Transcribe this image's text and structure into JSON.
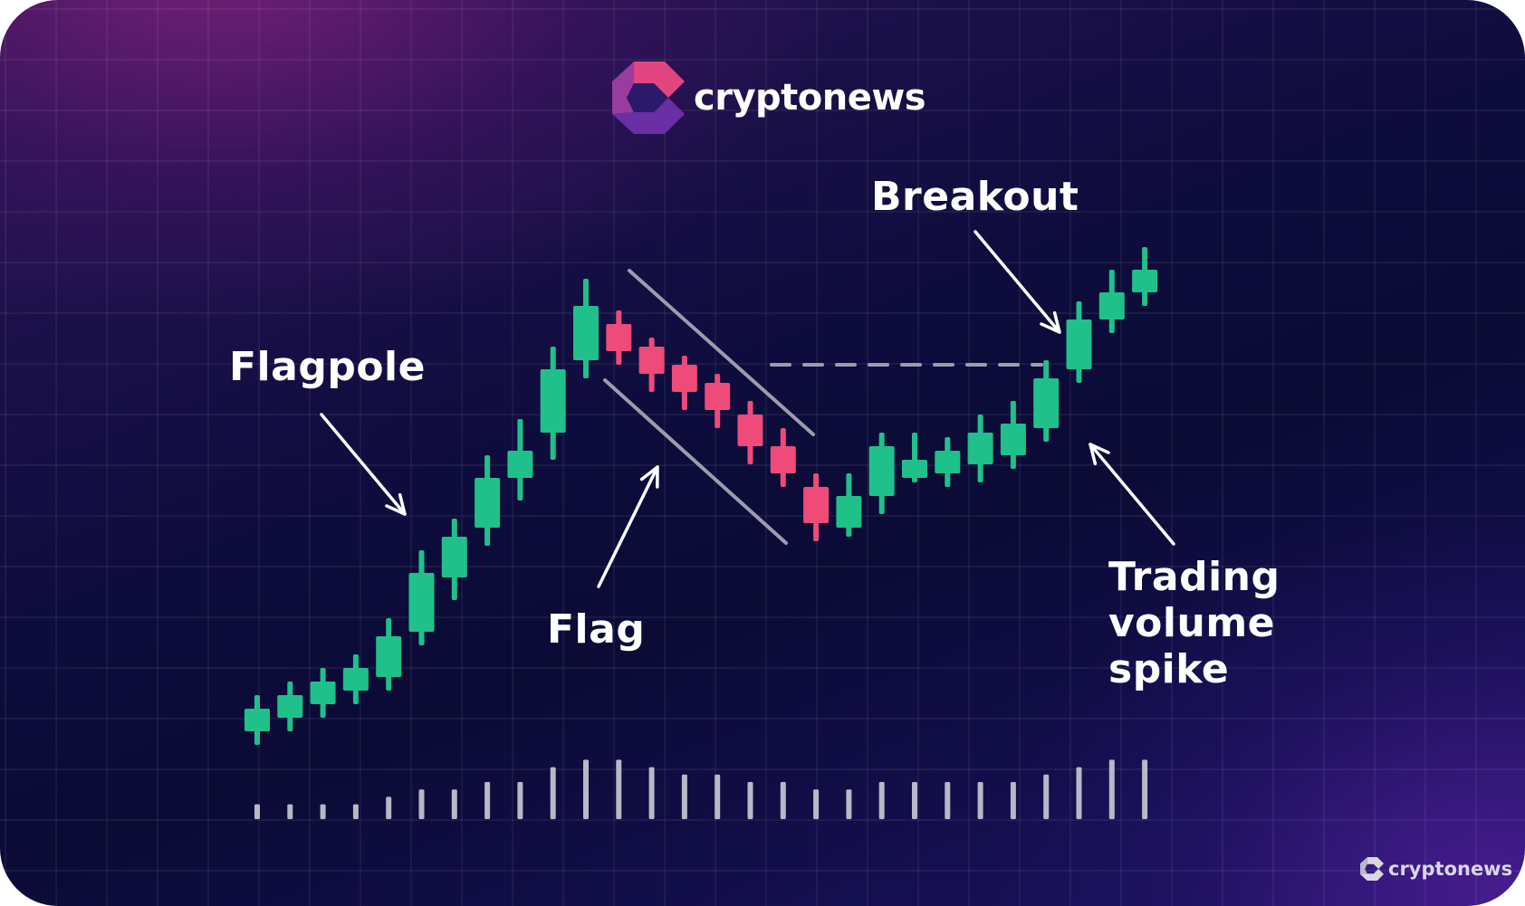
{
  "brand": {
    "name": "cryptonews",
    "watermark": "cryptonews",
    "logo_icon": "cryptonews-logo-icon",
    "colors": {
      "logo_pink": "#e2457f",
      "logo_purple": "#6a2fa5",
      "logo_dark": "#2b1a6b",
      "watermark": "#d9d6e6"
    }
  },
  "annotations": {
    "flagpole": "Flagpole",
    "flag": "Flag",
    "breakout": "Breakout",
    "volume": [
      "Trading",
      "volume",
      "spike"
    ]
  },
  "chart_data": {
    "type": "candlestick",
    "title": "",
    "xlabel": "",
    "ylabel": "",
    "grid": true,
    "axes_visible": false,
    "ylim": [
      0,
      100
    ],
    "colors": {
      "up": "#1fc08a",
      "down": "#ee4a7a",
      "volume": "#b8b8c6",
      "guide": "#9c9caf",
      "background": "#0d0c3c",
      "grid": "#ffffff"
    },
    "candles": [
      {
        "open": 4,
        "close": 9,
        "high": 12,
        "low": 1
      },
      {
        "open": 7,
        "close": 12,
        "high": 15,
        "low": 4
      },
      {
        "open": 10,
        "close": 15,
        "high": 18,
        "low": 7
      },
      {
        "open": 13,
        "close": 18,
        "high": 21,
        "low": 10
      },
      {
        "open": 16,
        "close": 25,
        "high": 29,
        "low": 13
      },
      {
        "open": 26,
        "close": 39,
        "high": 44,
        "low": 23
      },
      {
        "open": 38,
        "close": 47,
        "high": 51,
        "low": 33
      },
      {
        "open": 49,
        "close": 60,
        "high": 65,
        "low": 45
      },
      {
        "open": 60,
        "close": 66,
        "high": 73,
        "low": 55
      },
      {
        "open": 70,
        "close": 84,
        "high": 89,
        "low": 64
      },
      {
        "open": 86,
        "close": 98,
        "high": 104,
        "low": 82
      },
      {
        "open": 94,
        "close": 88,
        "high": 97,
        "low": 85
      },
      {
        "open": 89,
        "close": 83,
        "high": 91,
        "low": 79
      },
      {
        "open": 85,
        "close": 79,
        "high": 87,
        "low": 75
      },
      {
        "open": 81,
        "close": 75,
        "high": 83,
        "low": 71
      },
      {
        "open": 74,
        "close": 67,
        "high": 77,
        "low": 63
      },
      {
        "open": 67,
        "close": 61,
        "high": 71,
        "low": 58
      },
      {
        "open": 58,
        "close": 50,
        "high": 61,
        "low": 46
      },
      {
        "open": 49,
        "close": 56,
        "high": 61,
        "low": 47
      },
      {
        "open": 56,
        "close": 67,
        "high": 70,
        "low": 52
      },
      {
        "open": 60,
        "close": 64,
        "high": 70,
        "low": 59
      },
      {
        "open": 61,
        "close": 66,
        "high": 69,
        "low": 58
      },
      {
        "open": 63,
        "close": 70,
        "high": 74,
        "low": 59
      },
      {
        "open": 65,
        "close": 72,
        "high": 77,
        "low": 62
      },
      {
        "open": 71,
        "close": 82,
        "high": 86,
        "low": 68
      },
      {
        "open": 84,
        "close": 95,
        "high": 99,
        "low": 81
      },
      {
        "open": 95,
        "close": 101,
        "high": 106,
        "low": 92
      },
      {
        "open": 101,
        "close": 106,
        "high": 111,
        "low": 98
      }
    ],
    "volume": [
      2,
      2,
      2,
      2,
      3,
      4,
      4,
      5,
      5,
      7,
      8,
      8,
      7,
      6,
      6,
      5,
      5,
      4,
      4,
      5,
      5,
      5,
      5,
      5,
      6,
      7,
      8,
      8
    ],
    "breakout_level": 85
  }
}
